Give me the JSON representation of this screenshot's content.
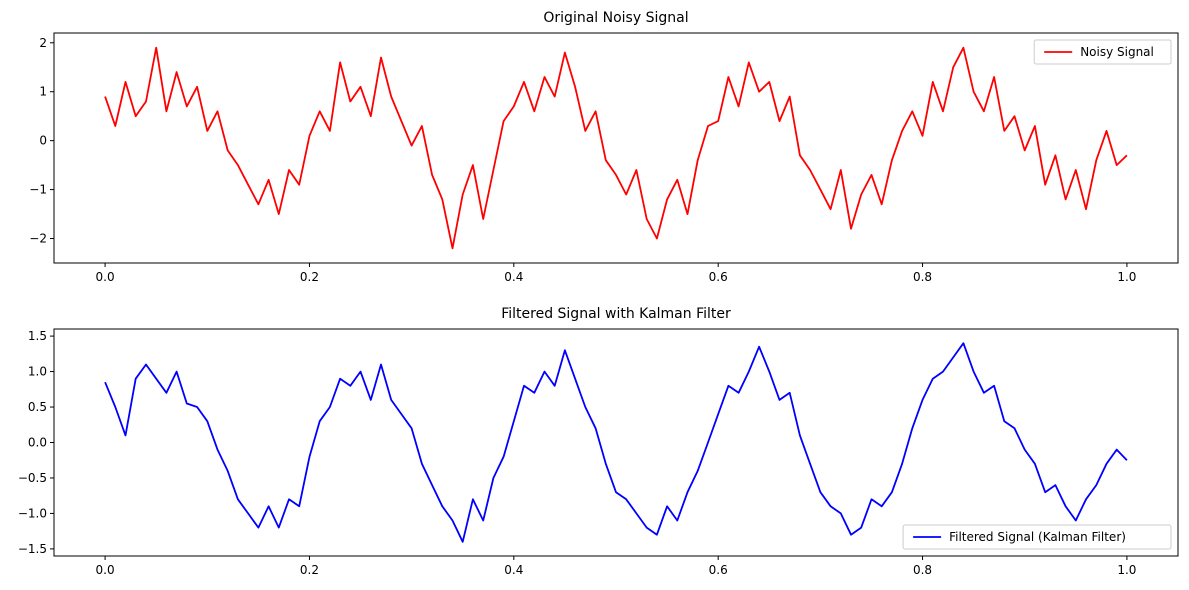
{
  "chart_data": [
    {
      "type": "line",
      "title": "Original Noisy Signal",
      "xlabel": "",
      "ylabel": "",
      "xlim": [
        -0.05,
        1.05
      ],
      "ylim": [
        -2.5,
        2.2
      ],
      "xticks": [
        0.0,
        0.2,
        0.4,
        0.6,
        0.8,
        1.0
      ],
      "xtick_labels": [
        "0.0",
        "0.2",
        "0.4",
        "0.6",
        "0.8",
        "1.0"
      ],
      "yticks": [
        -2,
        -1,
        0,
        1,
        2
      ],
      "ytick_labels": [
        "−2",
        "−1",
        "0",
        "1",
        "2"
      ],
      "grid": false,
      "legend": "top-right",
      "series": [
        {
          "name": "Noisy Signal",
          "color": "#ff0000",
          "description_x_range": [
            0,
            1
          ],
          "x": [
            0.0,
            0.01,
            0.02,
            0.03,
            0.04,
            0.05,
            0.06,
            0.07,
            0.08,
            0.09,
            0.1,
            0.11,
            0.12,
            0.13,
            0.14,
            0.15,
            0.16,
            0.17,
            0.18,
            0.19,
            0.2,
            0.21,
            0.22,
            0.23,
            0.24,
            0.25,
            0.26,
            0.27,
            0.28,
            0.29,
            0.3,
            0.31,
            0.32,
            0.33,
            0.34,
            0.35,
            0.36,
            0.37,
            0.38,
            0.39,
            0.4,
            0.41,
            0.42,
            0.43,
            0.44,
            0.45,
            0.46,
            0.47,
            0.48,
            0.49,
            0.5,
            0.51,
            0.52,
            0.53,
            0.54,
            0.55,
            0.56,
            0.57,
            0.58,
            0.59,
            0.6,
            0.61,
            0.62,
            0.63,
            0.64,
            0.65,
            0.66,
            0.67,
            0.68,
            0.69,
            0.7,
            0.71,
            0.72,
            0.73,
            0.74,
            0.75,
            0.76,
            0.77,
            0.78,
            0.79,
            0.8,
            0.81,
            0.82,
            0.83,
            0.84,
            0.85,
            0.86,
            0.87,
            0.88,
            0.89,
            0.9,
            0.91,
            0.92,
            0.93,
            0.94,
            0.95,
            0.96,
            0.97,
            0.98,
            0.99,
            1.0
          ],
          "y": [
            0.9,
            0.3,
            1.2,
            0.5,
            0.8,
            1.9,
            0.6,
            1.4,
            0.7,
            1.1,
            0.2,
            0.6,
            -0.2,
            -0.5,
            -0.9,
            -1.3,
            -0.8,
            -1.5,
            -0.6,
            -0.9,
            0.1,
            0.6,
            0.2,
            1.6,
            0.8,
            1.1,
            0.5,
            1.7,
            0.9,
            0.4,
            -0.1,
            0.3,
            -0.7,
            -1.2,
            -2.2,
            -1.1,
            -0.5,
            -1.6,
            -0.6,
            0.4,
            0.7,
            1.2,
            0.6,
            1.3,
            0.9,
            1.8,
            1.1,
            0.2,
            0.6,
            -0.4,
            -0.7,
            -1.1,
            -0.6,
            -1.6,
            -2.0,
            -1.2,
            -0.8,
            -1.5,
            -0.4,
            0.3,
            0.4,
            1.3,
            0.7,
            1.6,
            1.0,
            1.2,
            0.4,
            0.9,
            -0.3,
            -0.6,
            -1.0,
            -1.4,
            -0.6,
            -1.8,
            -1.1,
            -0.7,
            -1.3,
            -0.4,
            0.2,
            0.6,
            0.1,
            1.2,
            0.6,
            1.5,
            1.9,
            1.0,
            0.6,
            1.3,
            0.2,
            0.5,
            -0.2,
            0.3,
            -0.9,
            -0.3,
            -1.2,
            -0.6,
            -1.4,
            -0.4,
            0.2,
            -0.5,
            -0.3
          ]
        }
      ]
    },
    {
      "type": "line",
      "title": "Filtered Signal with Kalman Filter",
      "xlabel": "",
      "ylabel": "",
      "xlim": [
        -0.05,
        1.05
      ],
      "ylim": [
        -1.6,
        1.6
      ],
      "xticks": [
        0.0,
        0.2,
        0.4,
        0.6,
        0.8,
        1.0
      ],
      "xtick_labels": [
        "0.0",
        "0.2",
        "0.4",
        "0.6",
        "0.8",
        "1.0"
      ],
      "yticks": [
        -1.5,
        -1.0,
        -0.5,
        0.0,
        0.5,
        1.0,
        1.5
      ],
      "ytick_labels": [
        "−1.5",
        "−1.0",
        "−0.5",
        "0.0",
        "0.5",
        "1.0",
        "1.5"
      ],
      "grid": false,
      "legend": "bottom-right",
      "series": [
        {
          "name": "Filtered Signal (Kalman Filter)",
          "color": "#0000ff",
          "x": [
            0.0,
            0.01,
            0.02,
            0.03,
            0.04,
            0.05,
            0.06,
            0.07,
            0.08,
            0.09,
            0.1,
            0.11,
            0.12,
            0.13,
            0.14,
            0.15,
            0.16,
            0.17,
            0.18,
            0.19,
            0.2,
            0.21,
            0.22,
            0.23,
            0.24,
            0.25,
            0.26,
            0.27,
            0.28,
            0.29,
            0.3,
            0.31,
            0.32,
            0.33,
            0.34,
            0.35,
            0.36,
            0.37,
            0.38,
            0.39,
            0.4,
            0.41,
            0.42,
            0.43,
            0.44,
            0.45,
            0.46,
            0.47,
            0.48,
            0.49,
            0.5,
            0.51,
            0.52,
            0.53,
            0.54,
            0.55,
            0.56,
            0.57,
            0.58,
            0.59,
            0.6,
            0.61,
            0.62,
            0.63,
            0.64,
            0.65,
            0.66,
            0.67,
            0.68,
            0.69,
            0.7,
            0.71,
            0.72,
            0.73,
            0.74,
            0.75,
            0.76,
            0.77,
            0.78,
            0.79,
            0.8,
            0.81,
            0.82,
            0.83,
            0.84,
            0.85,
            0.86,
            0.87,
            0.88,
            0.89,
            0.9,
            0.91,
            0.92,
            0.93,
            0.94,
            0.95,
            0.96,
            0.97,
            0.98,
            0.99,
            1.0
          ],
          "y": [
            0.85,
            0.5,
            0.1,
            0.9,
            1.1,
            0.9,
            0.7,
            1.0,
            0.55,
            0.5,
            0.3,
            -0.1,
            -0.4,
            -0.8,
            -1.0,
            -1.2,
            -0.9,
            -1.2,
            -0.8,
            -0.9,
            -0.2,
            0.3,
            0.5,
            0.9,
            0.8,
            1.0,
            0.6,
            1.1,
            0.6,
            0.4,
            0.2,
            -0.3,
            -0.6,
            -0.9,
            -1.1,
            -1.4,
            -0.8,
            -1.1,
            -0.5,
            -0.2,
            0.3,
            0.8,
            0.7,
            1.0,
            0.8,
            1.3,
            0.9,
            0.5,
            0.2,
            -0.3,
            -0.7,
            -0.8,
            -1.0,
            -1.2,
            -1.3,
            -0.9,
            -1.1,
            -0.7,
            -0.4,
            0.0,
            0.4,
            0.8,
            0.7,
            1.0,
            1.35,
            1.0,
            0.6,
            0.7,
            0.1,
            -0.3,
            -0.7,
            -0.9,
            -1.0,
            -1.3,
            -1.2,
            -0.8,
            -0.9,
            -0.7,
            -0.3,
            0.2,
            0.6,
            0.9,
            1.0,
            1.2,
            1.4,
            1.0,
            0.7,
            0.8,
            0.3,
            0.2,
            -0.1,
            -0.3,
            -0.7,
            -0.6,
            -0.9,
            -1.1,
            -0.8,
            -0.6,
            -0.3,
            -0.1,
            -0.25
          ]
        }
      ]
    }
  ]
}
